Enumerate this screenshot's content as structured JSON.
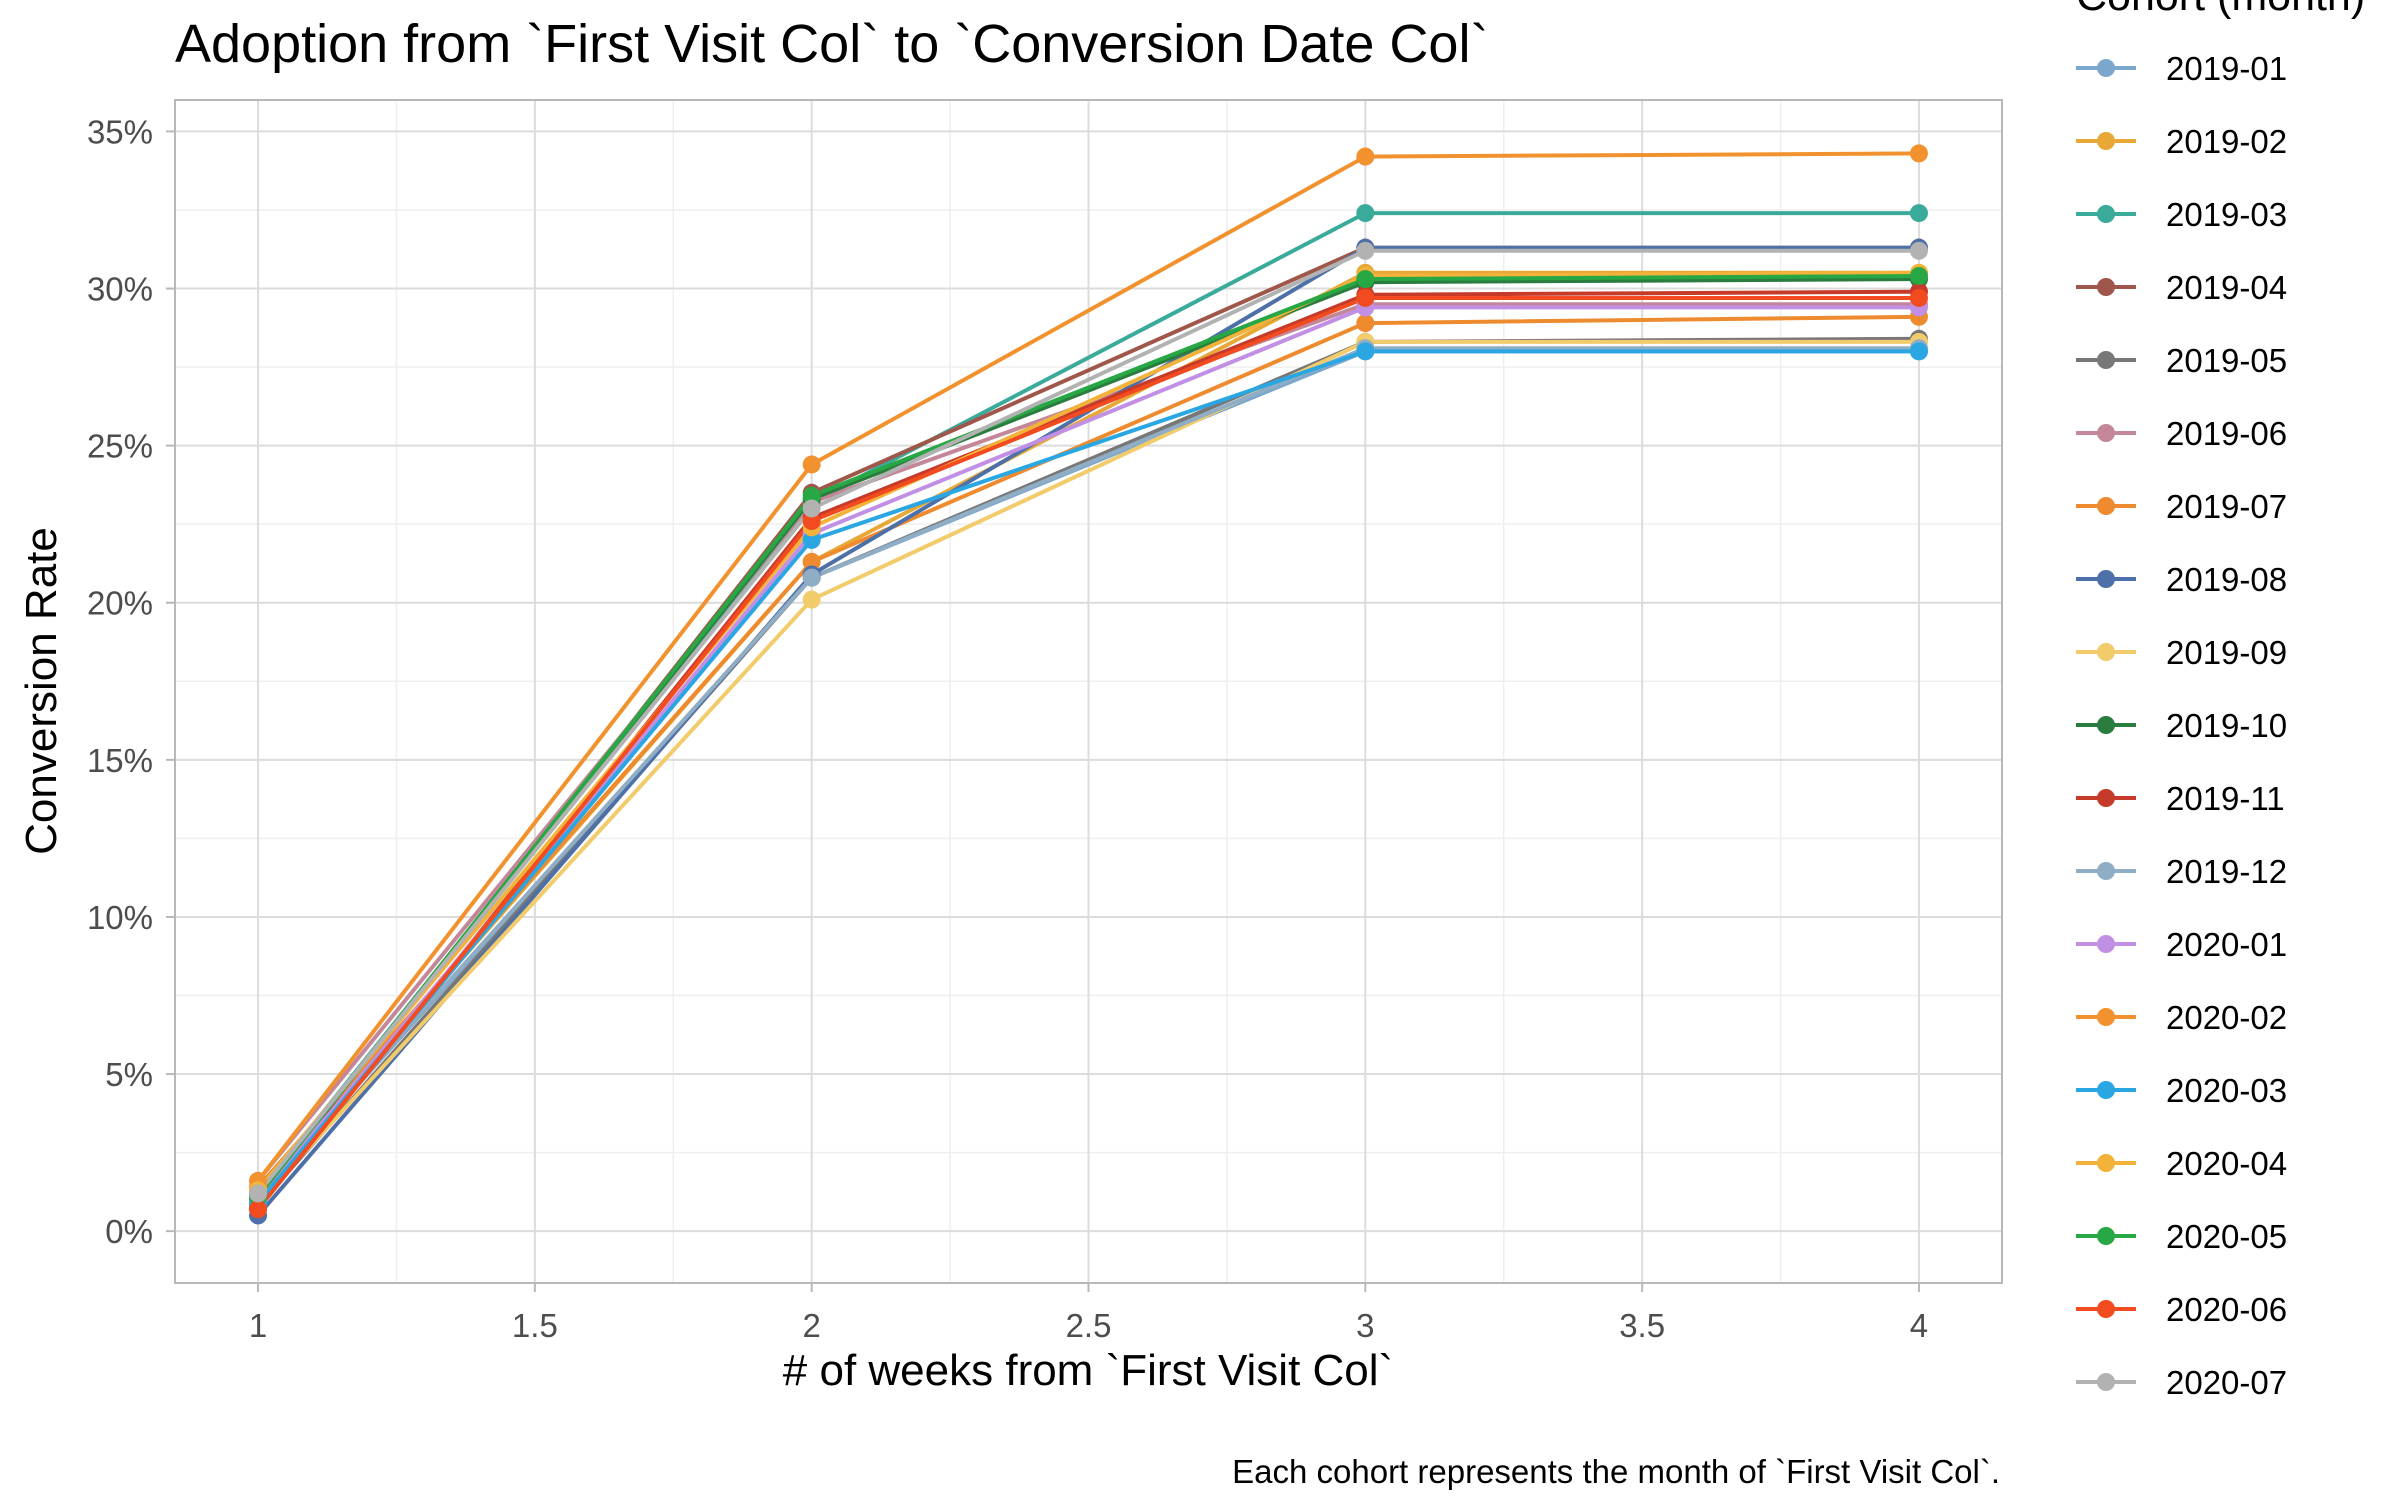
{
  "chart_data": {
    "type": "line",
    "title": "Adoption from `First Visit Col` to `Conversion Date Col`",
    "xlabel": "# of weeks from `First Visit Col`",
    "ylabel": "Conversion Rate",
    "caption": "Each cohort represents the month of `First Visit Col`.",
    "legend_title": "Cohort (month)",
    "legend_position": "right",
    "grid": true,
    "xlim": [
      0.85,
      4.15
    ],
    "ylim": [
      -0.0165,
      0.36
    ],
    "x_ticks": [
      1,
      1.5,
      2,
      2.5,
      3,
      3.5,
      4
    ],
    "x_tick_labels": [
      "1",
      "1.5",
      "2",
      "2.5",
      "3",
      "3.5",
      "4"
    ],
    "y_ticks": [
      0,
      0.05,
      0.1,
      0.15,
      0.2,
      0.25,
      0.3,
      0.35
    ],
    "y_tick_labels": [
      "0%",
      "5%",
      "10%",
      "15%",
      "20%",
      "25%",
      "30%",
      "35%"
    ],
    "x": [
      1,
      2,
      3,
      4
    ],
    "series": [
      {
        "name": "2019-01",
        "color": "#7ba7cc",
        "values": [
          0.011,
          0.208,
          0.28,
          0.28
        ]
      },
      {
        "name": "2019-02",
        "color": "#e8a838",
        "values": [
          0.013,
          0.213,
          0.305,
          0.305
        ]
      },
      {
        "name": "2019-03",
        "color": "#3aab9a",
        "values": [
          0.012,
          0.232,
          0.324,
          0.324
        ]
      },
      {
        "name": "2019-04",
        "color": "#a0574b",
        "values": [
          0.01,
          0.235,
          0.313,
          0.313
        ]
      },
      {
        "name": "2019-05",
        "color": "#777777",
        "values": [
          0.008,
          0.208,
          0.283,
          0.284
        ]
      },
      {
        "name": "2019-06",
        "color": "#c4879a",
        "values": [
          0.016,
          0.232,
          0.295,
          0.295
        ]
      },
      {
        "name": "2019-07",
        "color": "#ee8b2e",
        "values": [
          0.014,
          0.213,
          0.289,
          0.291
        ]
      },
      {
        "name": "2019-08",
        "color": "#4e70a8",
        "values": [
          0.005,
          0.209,
          0.313,
          0.313
        ]
      },
      {
        "name": "2019-09",
        "color": "#f2cb6b",
        "values": [
          0.009,
          0.201,
          0.283,
          0.283
        ]
      },
      {
        "name": "2019-10",
        "color": "#2a7d3e",
        "values": [
          0.011,
          0.233,
          0.302,
          0.303
        ]
      },
      {
        "name": "2019-11",
        "color": "#c63a2a",
        "values": [
          0.007,
          0.227,
          0.298,
          0.299
        ]
      },
      {
        "name": "2019-12",
        "color": "#8fadc4",
        "values": [
          0.012,
          0.208,
          0.281,
          0.281
        ]
      },
      {
        "name": "2020-01",
        "color": "#c18fe3",
        "values": [
          0.01,
          0.222,
          0.294,
          0.294
        ]
      },
      {
        "name": "2020-02",
        "color": "#f2922e",
        "values": [
          0.016,
          0.244,
          0.342,
          0.343
        ]
      },
      {
        "name": "2020-03",
        "color": "#2aa7e2",
        "values": [
          0.009,
          0.22,
          0.28,
          0.28
        ]
      },
      {
        "name": "2020-04",
        "color": "#f3b33a",
        "values": [
          0.013,
          0.224,
          0.304,
          0.305
        ]
      },
      {
        "name": "2020-05",
        "color": "#28a745",
        "values": [
          0.011,
          0.234,
          0.303,
          0.304
        ]
      },
      {
        "name": "2020-06",
        "color": "#f24b1f",
        "values": [
          0.007,
          0.226,
          0.297,
          0.297
        ]
      },
      {
        "name": "2020-07",
        "color": "#b2b2b2",
        "values": [
          0.012,
          0.23,
          0.312,
          0.312
        ]
      }
    ]
  }
}
